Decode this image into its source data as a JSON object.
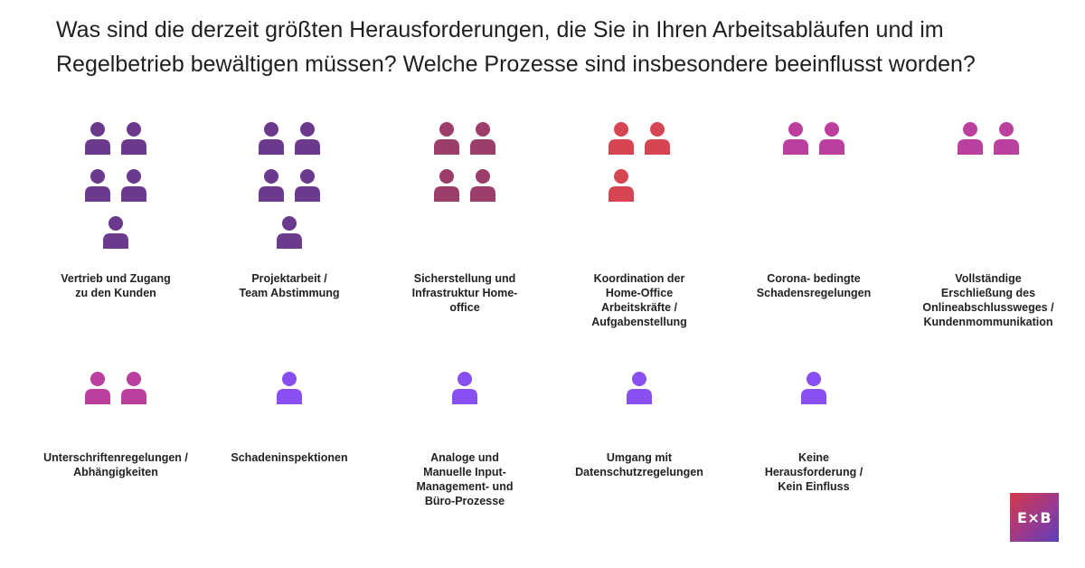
{
  "title": "Was sind die derzeit größten Herausforderungen, die Sie in Ihren Arbeitsabläufen und im Regelbetrieb bewältigen müssen? Welche Prozesse sind insbesondere beeinflusst worden?",
  "logo_text": "E×B",
  "chart_data": {
    "type": "pictogram",
    "unit_icon": "person-icon",
    "categories": [
      {
        "label": "Vertrieb und Zugang\nzu den Kunden",
        "value": 5,
        "color": "#6b3a8c"
      },
      {
        "label": "Projektarbeit /\nTeam Abstimmung",
        "value": 5,
        "color": "#6b3a8c"
      },
      {
        "label": "Sicherstellung und\nInfrastruktur Home-\noffice",
        "value": 4,
        "color": "#9b3e6a"
      },
      {
        "label": "Koordination der\nHome-Office\nArbeitskräfte /\nAufgabenstellung",
        "value": 3,
        "color": "#d64552"
      },
      {
        "label": "Corona- bedingte\nSchadensregelungen",
        "value": 2,
        "color": "#bb3f9c"
      },
      {
        "label": "Vollständige\nErschließung des\nOnlineabschlussweges /\nKundenmommunikation",
        "value": 2,
        "color": "#bb3f9c"
      },
      {
        "label": "Unterschriftenregelungen /\nAbhängigkeiten",
        "value": 2,
        "color": "#bb3f9c"
      },
      {
        "label": "Schadeninspektionen",
        "value": 1,
        "color": "#8a4ff0"
      },
      {
        "label": "Analoge und\nManuelle Input-\nManagement- und\nBüro-Prozesse",
        "value": 1,
        "color": "#8a4ff0"
      },
      {
        "label": "Umgang mit\nDatenschutzregelungen",
        "value": 1,
        "color": "#8a4ff0"
      },
      {
        "label": "Keine\nHerausforderung /\nKein Einfluss",
        "value": 1,
        "color": "#8a4ff0"
      }
    ]
  }
}
